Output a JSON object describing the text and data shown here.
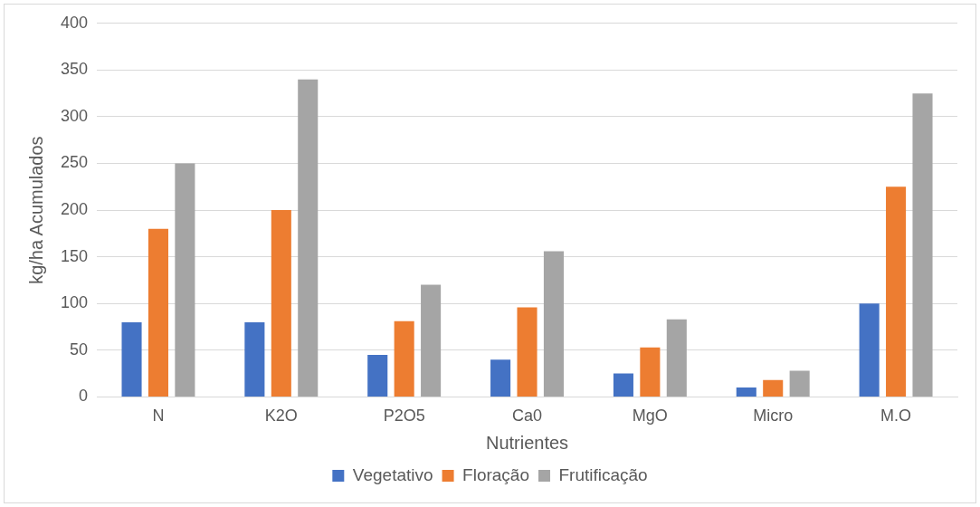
{
  "chart_data": {
    "type": "bar",
    "xlabel": "Nutrientes",
    "ylabel": "kg/ha Acumulados",
    "categories": [
      "N",
      "K2O",
      "P2O5",
      "Ca0",
      "MgO",
      "Micro",
      "M.O"
    ],
    "series": [
      {
        "name": "Vegetativo",
        "color": "#4472c4",
        "values": [
          80,
          80,
          45,
          40,
          25,
          10,
          100
        ]
      },
      {
        "name": "Floração",
        "color": "#ed7d31",
        "values": [
          180,
          200,
          81,
          96,
          53,
          18,
          225
        ]
      },
      {
        "name": "Frutificação",
        "color": "#a5a5a5",
        "values": [
          250,
          340,
          120,
          156,
          83,
          28,
          325
        ]
      }
    ],
    "ylim": [
      0,
      400
    ],
    "yticks": [
      0,
      50,
      100,
      150,
      200,
      250,
      300,
      350,
      400
    ],
    "grid": "y",
    "legend": "bottom"
  }
}
